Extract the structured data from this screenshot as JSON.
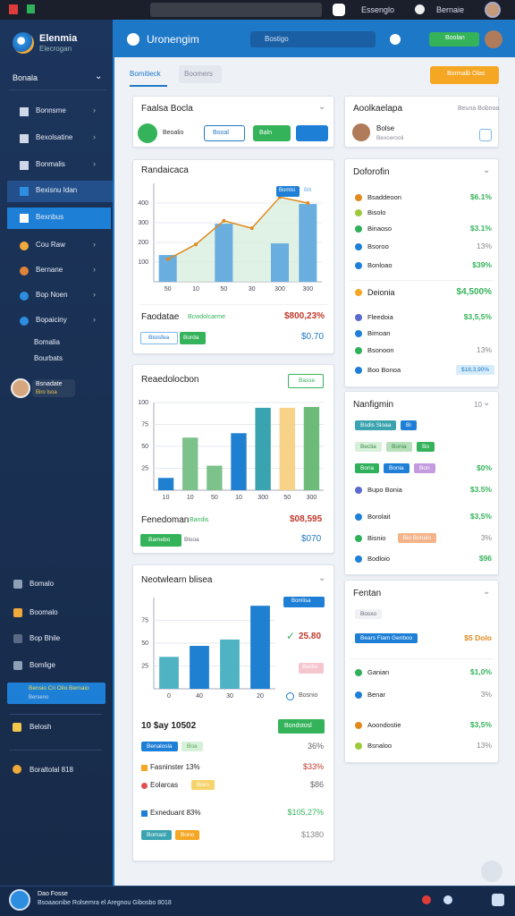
{
  "browser": {
    "tab": "Essenglo",
    "user": "Bernaie"
  },
  "sidebar": {
    "brand": "Elenmia",
    "brand_sub": "Elecrogan",
    "section": "Bonala",
    "nav": [
      "Bonnsme",
      "Bexolsatine",
      "Bonmalis",
      "Bexisnu Idan",
      "Bexnbus",
      "Cou Raw",
      "Bernane",
      "Bop Noen",
      "Bopaiciny",
      "Bomalia",
      "Bourbats"
    ],
    "profile": {
      "name": "Bsnadate",
      "role": "Biro Isoa"
    },
    "bottom_nav": [
      "Bomalo",
      "Boomalo",
      "Bop Bhile",
      "Bomlige"
    ],
    "promo": {
      "title": "Bensio Cri Olio Bernaio",
      "sub": "Berseno"
    },
    "extra": [
      "Belosh",
      "Boraltolal 818"
    ]
  },
  "header": {
    "title": "Uronengim",
    "search": "Bostigo",
    "button": "Boolan"
  },
  "tabs": [
    "Bomitieck",
    "Boomers"
  ],
  "action": "Bormalb Olas",
  "top_card": {
    "title": "Faalsa Bocla",
    "buttons": [
      "Beoalio",
      "Booal",
      "Baln"
    ]
  },
  "chart_cards": [
    {
      "title": "Randaicaca",
      "chart": {
        "type": "combo",
        "categories": [
          "50",
          "10",
          "50",
          "30",
          "300",
          "300"
        ],
        "ylim": [
          0,
          500
        ],
        "yticks": [
          100,
          200,
          300,
          400
        ],
        "grid": true,
        "series": [
          {
            "name": "Bomlsi",
            "type": "bar",
            "color": "#6aaee0",
            "values": [
              136,
              null,
              295,
              null,
              195,
              395
            ]
          },
          {
            "name": "Biti",
            "type": "line",
            "color": "#e08a1e",
            "values": [
              114,
              190,
              310,
              272,
              430,
              400
            ]
          }
        ]
      },
      "summary": {
        "label": "Faodatae",
        "note": "Bcwdolcarme",
        "value": "$800,23%",
        "tags": [
          "Bioisfea",
          "Borda"
        ],
        "value2": "$0.70"
      }
    },
    {
      "title": "Reaedolocbon",
      "button": "Basse",
      "chart": {
        "type": "bar",
        "categories": [
          "10",
          "10",
          "50",
          "10",
          "300",
          "50",
          "300"
        ],
        "ylim": [
          0,
          100
        ],
        "yticks": [
          25,
          50,
          75,
          100
        ],
        "grid": true,
        "series": [
          {
            "colors": [
              "#1f7fd0",
              "#7cc28a",
              "#7cc28a",
              "#1f7fd0",
              "#3aa3b0",
              "#f7d38a",
              "#6dbb78"
            ],
            "values": [
              14,
              60,
              28,
              65,
              94,
              94,
              95
            ]
          }
        ]
      },
      "summary": {
        "label": "Fenedoman",
        "note": "Bandis",
        "value": "$08,595",
        "tags": [
          "Bamebo",
          "Blooa"
        ],
        "value2": "$070"
      }
    },
    {
      "title": "Neotwlearn blisea",
      "chart": {
        "type": "bar",
        "categories": [
          "0",
          "40",
          "30",
          "20"
        ],
        "ylim": [
          0,
          100
        ],
        "yticks": [
          25,
          50,
          75
        ],
        "grid": true,
        "series": [
          {
            "name": "Bomlisa",
            "colors": [
              "#4fb3c4",
              "#1f7fd0",
              "#4fb3c4",
              "#1f7fd0"
            ],
            "values": [
              35,
              47,
              54,
              91
            ]
          }
        ]
      },
      "side": [
        "25.80",
        "Bastlo",
        "Bosnio"
      ],
      "list": {
        "heading": "10 $ay 10502",
        "button": "Bondstosl",
        "rows": [
          {
            "tags": [
              "Benalosla",
              "Boa"
            ],
            "value": "36%"
          },
          {
            "label": "Fasninster 13%",
            "value": "$33%"
          },
          {
            "label": "Eolarcas",
            "tags": [
              "Boro"
            ],
            "value": "$86"
          },
          {
            "label": "Exneduant 83%",
            "value": "$105,27%"
          },
          {
            "tags": [
              "Bomasl",
              "Bono"
            ],
            "value": "$1380"
          }
        ]
      }
    }
  ],
  "profile_card": {
    "title": "Aoolkaelapa",
    "sub": "Beuna Bobnoa",
    "name": "Bolse",
    "role": "Bexcerooli"
  },
  "list_cards": [
    {
      "title": "Doforofin",
      "rows": [
        {
          "label": "Bsaddeoon",
          "value": "$6.1%"
        },
        {
          "label": "Bisolo"
        },
        {
          "label": "Binaoso",
          "value": "$3.1%"
        },
        {
          "label": "Bsoroo",
          "value": "13%"
        },
        {
          "label": "Bonloao",
          "value": "$39%"
        },
        {
          "label": "Deionia",
          "value": "$4,500%"
        },
        {
          "label": "Fleedoia",
          "value": "$3,5,5%"
        },
        {
          "label": "Bimoan"
        },
        {
          "label": "Bsonoon",
          "value": "13%"
        },
        {
          "label": "Boo Bonoa",
          "tags": [
            "$18,3,90%"
          ]
        }
      ]
    },
    {
      "title": "Nanfigmin",
      "sub": "10",
      "rows": [
        {
          "tags": [
            "Bsdis Sloaa",
            "Bi"
          ]
        },
        {
          "tags": [
            "Beclia",
            "Bonia",
            "Bo"
          ]
        },
        {
          "tags": [
            "Boria",
            "Bonia",
            "Bon"
          ],
          "value": "$0%"
        },
        {
          "label": "Bupo Bonia",
          "value": "$3.5%"
        },
        {
          "label": "Borolait",
          "value": "$3,5%"
        },
        {
          "label": "Bisnio",
          "tags": [
            "Bio Borialo"
          ],
          "value": "3%"
        },
        {
          "label": "Bodloio",
          "value": "$96"
        }
      ]
    },
    {
      "title": "Fentan",
      "rows": [
        {
          "tags": [
            "Bosxo"
          ]
        },
        {
          "tags": [
            "Bears Fiam Genboo"
          ],
          "value": "$5 Dolo"
        },
        {
          "label": "Ganian",
          "value": "$1,0%"
        },
        {
          "label": "Benar",
          "value": "3%"
        },
        {
          "label": "Aoondostie",
          "value": "$3,5%"
        },
        {
          "label": "Bsnaloo",
          "value": "13%"
        }
      ]
    }
  ],
  "footer": {
    "title": "Dao Fosse",
    "text": "Bsoaaonibe Rolsemra el Aregnou Gibosbo 8018"
  }
}
